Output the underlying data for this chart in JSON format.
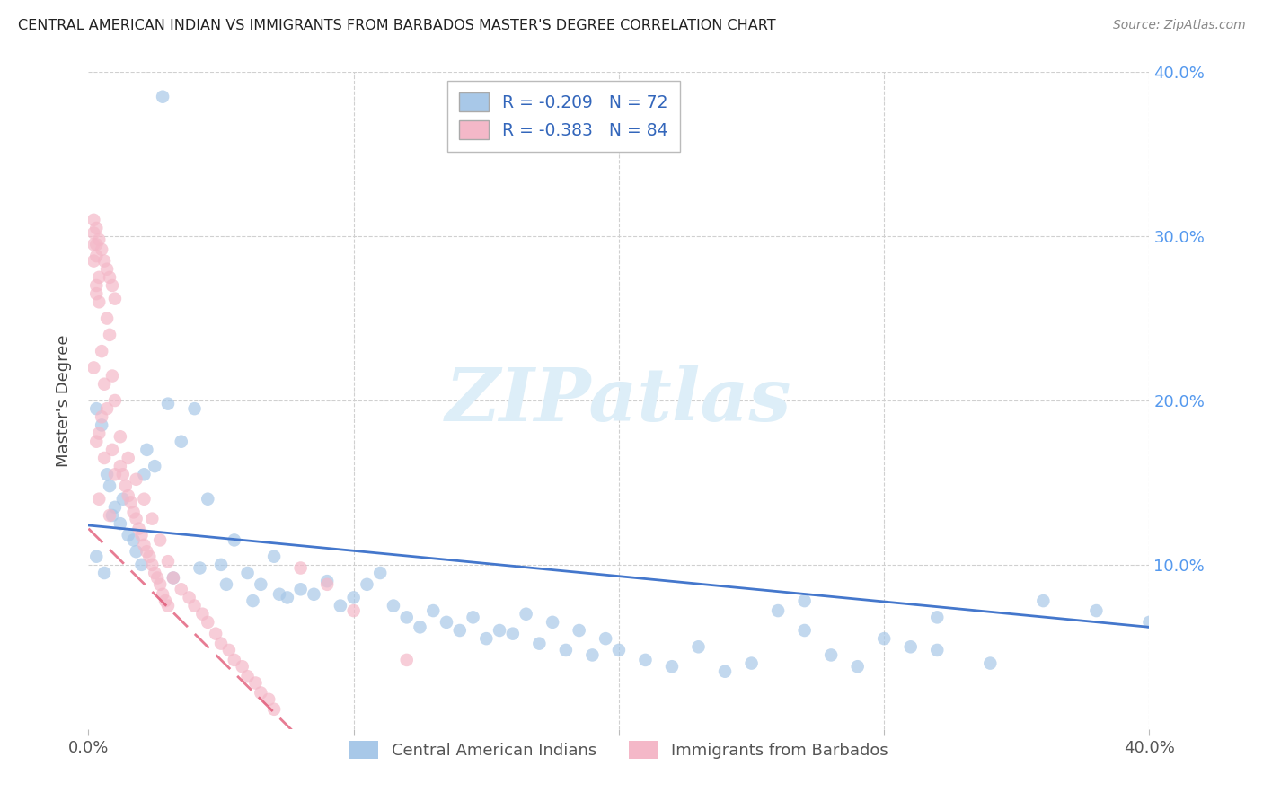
{
  "title": "CENTRAL AMERICAN INDIAN VS IMMIGRANTS FROM BARBADOS MASTER'S DEGREE CORRELATION CHART",
  "source": "Source: ZipAtlas.com",
  "ylabel": "Master's Degree",
  "blue_label": "Central American Indians",
  "pink_label": "Immigrants from Barbados",
  "blue_R": "-0.209",
  "blue_N": "72",
  "pink_R": "-0.383",
  "pink_N": "84",
  "xlim": [
    0.0,
    0.4
  ],
  "ylim": [
    0.0,
    0.4
  ],
  "blue_color": "#a8c8e8",
  "pink_color": "#f4b8c8",
  "blue_line_color": "#4477cc",
  "pink_line_color": "#dd4466",
  "watermark": "ZIPatlas",
  "watermark_color": "#ddeef8",
  "grid_color": "#d0d0d0",
  "title_color": "#222222",
  "source_color": "#888888",
  "right_axis_color": "#5599ee",
  "tick_color": "#555555",
  "legend_text_color": "#3366bb"
}
